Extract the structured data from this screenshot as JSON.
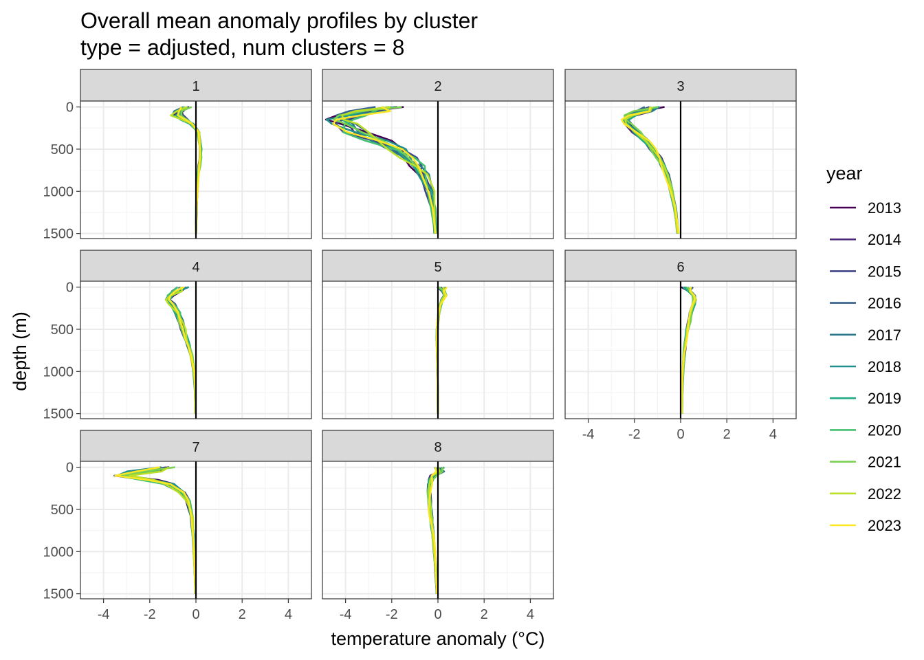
{
  "chart_data": {
    "type": "line",
    "title": "Overall mean anomaly profiles by cluster",
    "subtitle": "type = adjusted, num clusters = 8",
    "xlabel": "temperature anomaly (°C)",
    "ylabel": "depth (m)",
    "xlim": [
      -5,
      5
    ],
    "ylim": [
      1560,
      -70
    ],
    "x_ticks": [
      -4,
      -2,
      0,
      2,
      4
    ],
    "x_tick_labels": [
      "-4",
      "-2",
      "0",
      "2",
      "4"
    ],
    "y_ticks": [
      0,
      500,
      1000,
      1500
    ],
    "y_tick_labels": [
      "0",
      "500",
      "1000",
      "1500"
    ],
    "grid": true,
    "reference_line_x": 0,
    "legend": {
      "title": "year",
      "position": "right",
      "entries": [
        {
          "label": "2013",
          "color": "#440154"
        },
        {
          "label": "2014",
          "color": "#482576"
        },
        {
          "label": "2015",
          "color": "#414487"
        },
        {
          "label": "2016",
          "color": "#35608D"
        },
        {
          "label": "2017",
          "color": "#2A788E"
        },
        {
          "label": "2018",
          "color": "#21908C"
        },
        {
          "label": "2019",
          "color": "#22A884"
        },
        {
          "label": "2020",
          "color": "#43BF71"
        },
        {
          "label": "2021",
          "color": "#7AD151"
        },
        {
          "label": "2022",
          "color": "#BBDF27"
        },
        {
          "label": "2023",
          "color": "#FDE725"
        }
      ]
    },
    "depths": [
      50,
      100,
      150,
      200,
      300,
      400,
      500,
      600,
      700,
      800,
      1000,
      1200,
      1500
    ],
    "panels": [
      {
        "label": "1",
        "base": [
          -0.7,
          -0.8,
          -0.5,
          -0.2,
          0.1,
          0.15,
          0.2,
          0.2,
          0.15,
          0.1,
          0.05,
          0.02,
          0.0
        ],
        "spread": [
          0.25,
          0.3,
          0.2,
          0.1,
          0.06,
          0.05,
          0.05,
          0.05,
          0.05,
          0.04,
          0.03,
          0.02,
          0.01
        ]
      },
      {
        "label": "2",
        "base": [
          -3.0,
          -3.8,
          -4.2,
          -4.0,
          -3.5,
          -2.6,
          -1.8,
          -1.3,
          -0.9,
          -0.65,
          -0.35,
          -0.2,
          -0.1
        ],
        "spread": [
          1.0,
          0.8,
          0.7,
          0.7,
          0.7,
          0.6,
          0.5,
          0.4,
          0.35,
          0.3,
          0.2,
          0.12,
          0.06
        ]
      },
      {
        "label": "3",
        "base": [
          -1.6,
          -2.2,
          -2.4,
          -2.3,
          -1.9,
          -1.5,
          -1.2,
          -0.95,
          -0.75,
          -0.6,
          -0.4,
          -0.25,
          -0.12
        ],
        "spread": [
          0.5,
          0.3,
          0.2,
          0.2,
          0.2,
          0.18,
          0.15,
          0.13,
          0.12,
          0.1,
          0.08,
          0.06,
          0.04
        ]
      },
      {
        "label": "4",
        "base": [
          -0.8,
          -1.1,
          -1.2,
          -1.05,
          -0.8,
          -0.7,
          -0.55,
          -0.45,
          -0.3,
          -0.2,
          -0.08,
          -0.04,
          -0.02
        ],
        "spread": [
          0.25,
          0.15,
          0.12,
          0.15,
          0.15,
          0.15,
          0.12,
          0.1,
          0.08,
          0.06,
          0.04,
          0.02,
          0.01
        ]
      },
      {
        "label": "5",
        "base": [
          0.25,
          0.3,
          0.2,
          0.12,
          0.05,
          0.0,
          -0.03,
          -0.05,
          -0.04,
          -0.03,
          -0.02,
          -0.01,
          0.0
        ],
        "spread": [
          0.08,
          0.08,
          0.06,
          0.05,
          0.04,
          0.03,
          0.03,
          0.02,
          0.02,
          0.02,
          0.01,
          0.01,
          0.01
        ]
      },
      {
        "label": "6",
        "base": [
          0.4,
          0.55,
          0.6,
          0.55,
          0.45,
          0.38,
          0.3,
          0.24,
          0.19,
          0.15,
          0.1,
          0.07,
          0.05
        ],
        "spread": [
          0.08,
          0.08,
          0.08,
          0.08,
          0.07,
          0.07,
          0.06,
          0.05,
          0.05,
          0.04,
          0.03,
          0.02,
          0.02
        ]
      },
      {
        "label": "7",
        "base": [
          -2.0,
          -3.2,
          -2.0,
          -1.2,
          -0.6,
          -0.35,
          -0.25,
          -0.18,
          -0.15,
          -0.12,
          -0.08,
          -0.05,
          -0.02
        ],
        "spread": [
          1.0,
          0.4,
          0.4,
          0.3,
          0.15,
          0.1,
          0.08,
          0.06,
          0.05,
          0.04,
          0.03,
          0.02,
          0.01
        ]
      },
      {
        "label": "8",
        "base": [
          0.1,
          -0.2,
          -0.3,
          -0.35,
          -0.38,
          -0.36,
          -0.33,
          -0.3,
          -0.26,
          -0.22,
          -0.15,
          -0.1,
          -0.04
        ],
        "spread": [
          0.2,
          0.15,
          0.12,
          0.1,
          0.08,
          0.08,
          0.08,
          0.07,
          0.06,
          0.05,
          0.04,
          0.03,
          0.02
        ]
      }
    ]
  }
}
